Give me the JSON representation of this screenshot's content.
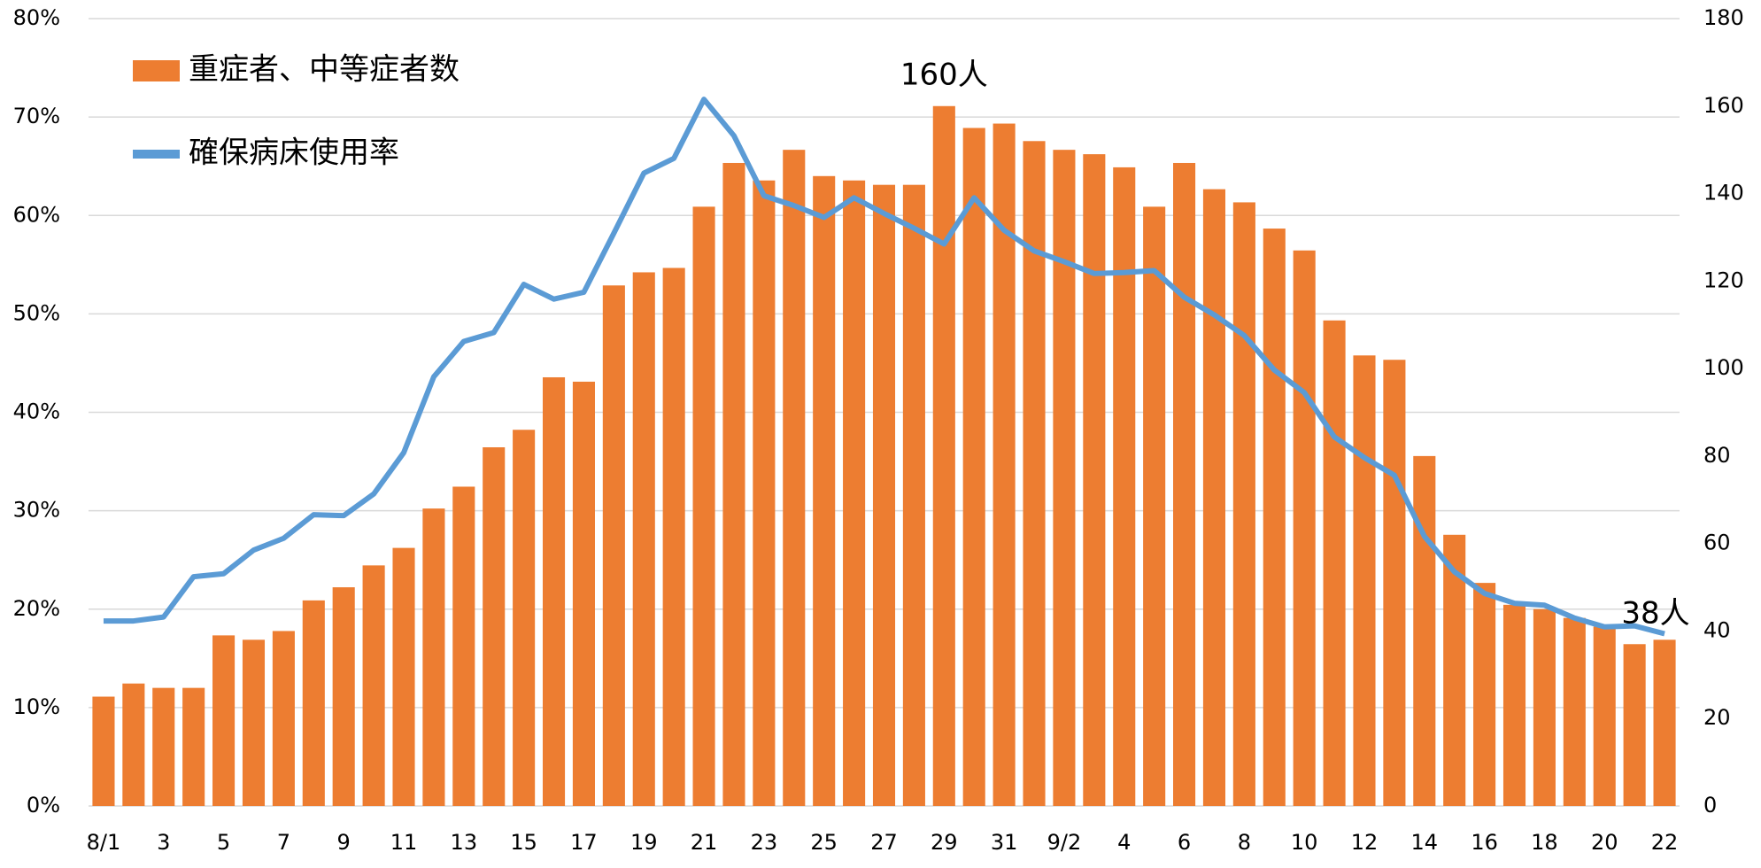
{
  "chart_data": {
    "type": "bar-line",
    "categories": [
      "8/1",
      null,
      "3",
      null,
      "5",
      null,
      "7",
      null,
      "9",
      null,
      "11",
      null,
      "13",
      null,
      "15",
      null,
      "17",
      null,
      "19",
      null,
      "21",
      null,
      "23",
      null,
      "25",
      null,
      "27",
      null,
      "29",
      null,
      "31",
      null,
      "9/2",
      null,
      "4",
      null,
      "6",
      null,
      "8",
      null,
      "10",
      null,
      "12",
      null,
      "14",
      null,
      "16",
      null,
      "18",
      null,
      "20",
      null,
      "22"
    ],
    "series": [
      {
        "name": "重症者、中等症者数",
        "type": "bar",
        "axis": "y2",
        "color": "#ED7D31",
        "values": [
          25,
          28,
          27,
          27,
          39,
          38,
          40,
          47,
          50,
          55,
          59,
          68,
          73,
          82,
          86,
          98,
          97,
          119,
          122,
          123,
          137,
          147,
          143,
          150,
          144,
          143,
          142,
          142,
          160,
          155,
          156,
          152,
          150,
          149,
          146,
          137,
          147,
          141,
          138,
          132,
          127,
          111,
          103,
          102,
          80,
          62,
          51,
          46,
          45,
          43,
          41,
          37,
          38
        ]
      },
      {
        "name": "確保病床使用率",
        "type": "line",
        "axis": "y",
        "color": "#5B9BD5",
        "values": [
          18.8,
          18.8,
          19.2,
          23.3,
          23.6,
          26,
          27.2,
          29.6,
          29.5,
          31.7,
          35.9,
          43.6,
          47.2,
          48.1,
          53,
          51.5,
          52.2,
          58.2,
          64.3,
          65.8,
          71.8,
          68.1,
          62,
          61,
          59.8,
          61.8,
          60.2,
          58.7,
          57.1,
          61.8,
          58.5,
          56.4,
          55.3,
          54.1,
          54.2,
          54.4,
          51.7,
          49.9,
          47.8,
          44.3,
          42,
          37.5,
          35.4,
          33.6,
          27.4,
          23.8,
          21.6,
          20.6,
          20.4,
          19.1,
          18.2,
          18.3,
          17.5
        ]
      }
    ],
    "ylim": [
      0,
      80
    ],
    "yticks": [
      {
        "value": 0,
        "label": "0%"
      },
      {
        "value": 10,
        "label": "10%"
      },
      {
        "value": 20,
        "label": "20%"
      },
      {
        "value": 30,
        "label": "30%"
      },
      {
        "value": 40,
        "label": "40%"
      },
      {
        "value": 50,
        "label": "50%"
      },
      {
        "value": 60,
        "label": "60%"
      },
      {
        "value": 70,
        "label": "70%"
      },
      {
        "value": 80,
        "label": "80%"
      }
    ],
    "y2lim": [
      0,
      180
    ],
    "y2ticks": [
      0,
      20,
      40,
      60,
      80,
      100,
      120,
      140,
      160,
      180
    ],
    "grid": true,
    "legend": "upper left",
    "annotations": [
      "160人",
      "38人"
    ]
  }
}
